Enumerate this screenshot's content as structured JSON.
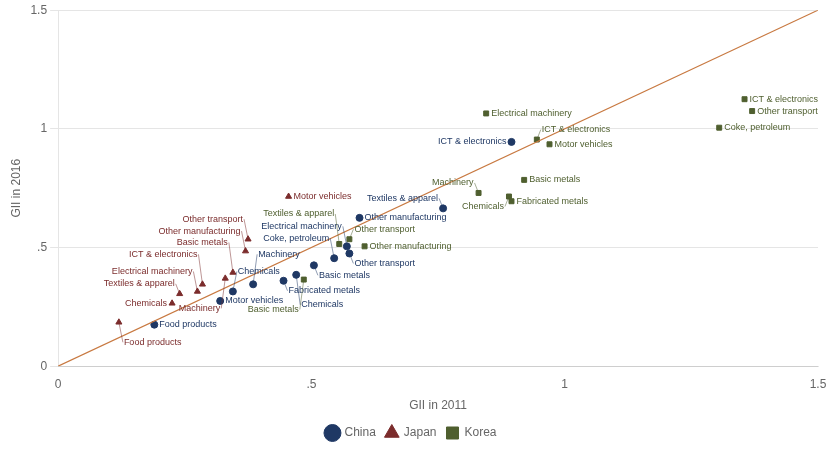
{
  "chart_data": {
    "type": "scatter",
    "xlabel": "GII in 2011",
    "ylabel": "GII in 2016",
    "xlim": [
      0,
      1.5
    ],
    "ylim": [
      0,
      1.5
    ],
    "xticks": [
      0,
      {
        "value": 0.5,
        "label": ".5"
      },
      1,
      1.5
    ],
    "yticks": [
      0,
      {
        "value": 0.5,
        "label": ".5"
      },
      1,
      1.5
    ],
    "grid": "y",
    "legend": "bottom",
    "lines": [
      {
        "x": [
          0,
          1.5
        ],
        "y": [
          0,
          1.5
        ],
        "color": "#c87941"
      }
    ],
    "series": [
      {
        "name": "China",
        "color": "#1f3864",
        "marker": "circle",
        "points": [
          {
            "x": 0.19,
            "y": 0.175,
            "label": "Food products"
          },
          {
            "x": 0.32,
            "y": 0.275,
            "label": "Motor vehicles"
          },
          {
            "x": 0.345,
            "y": 0.315,
            "label": "Chemicals"
          },
          {
            "x": 0.385,
            "y": 0.345,
            "label": "Machinery"
          },
          {
            "x": 0.445,
            "y": 0.36,
            "label": "Fabricated metals"
          },
          {
            "x": 0.47,
            "y": 0.385,
            "label": "Chemicals"
          },
          {
            "x": 0.505,
            "y": 0.425,
            "label": "Basic metals"
          },
          {
            "x": 0.545,
            "y": 0.455,
            "label": "Coke, petroleum"
          },
          {
            "x": 0.575,
            "y": 0.475,
            "label": "Other transport"
          },
          {
            "x": 0.57,
            "y": 0.505,
            "label": "Electrical machinery"
          },
          {
            "x": 0.595,
            "y": 0.625,
            "label": "Other manufacturing"
          },
          {
            "x": 0.76,
            "y": 0.665,
            "label": "Textiles & apparel"
          },
          {
            "x": 0.895,
            "y": 0.945,
            "label": "ICT & electronics"
          }
        ]
      },
      {
        "name": "Japan",
        "color": "#7b2c2c",
        "marker": "triangle",
        "points": [
          {
            "x": 0.12,
            "y": 0.185,
            "label": "Food products"
          },
          {
            "x": 0.225,
            "y": 0.265,
            "label": "Chemicals"
          },
          {
            "x": 0.24,
            "y": 0.305,
            "label": "Textiles & apparel"
          },
          {
            "x": 0.275,
            "y": 0.315,
            "label": "Electrical machinery"
          },
          {
            "x": 0.285,
            "y": 0.345,
            "label": "ICT & electronics"
          },
          {
            "x": 0.33,
            "y": 0.37,
            "label": "Machinery"
          },
          {
            "x": 0.345,
            "y": 0.395,
            "label": "Basic metals"
          },
          {
            "x": 0.37,
            "y": 0.485,
            "label": "Other manufacturing"
          },
          {
            "x": 0.375,
            "y": 0.535,
            "label": "Other transport"
          },
          {
            "x": 0.455,
            "y": 0.715,
            "label": "Motor vehicles"
          }
        ]
      },
      {
        "name": "Korea",
        "color": "#4f5f2f",
        "marker": "square",
        "points": [
          {
            "x": 0.555,
            "y": 0.515,
            "label": "Textiles & apparel"
          },
          {
            "x": 0.605,
            "y": 0.505,
            "label": "Other manufacturing"
          },
          {
            "x": 0.575,
            "y": 0.535,
            "label": "Other transport"
          },
          {
            "x": 0.485,
            "y": 0.365,
            "label": "Basic metals"
          },
          {
            "x": 0.83,
            "y": 0.73,
            "label": "Machinery"
          },
          {
            "x": 0.89,
            "y": 0.715,
            "label": "Chemicals"
          },
          {
            "x": 0.895,
            "y": 0.695,
            "label": "Fabricated metals"
          },
          {
            "x": 0.92,
            "y": 0.785,
            "label": "Basic metals"
          },
          {
            "x": 0.97,
            "y": 0.935,
            "label": "Motor vehicles"
          },
          {
            "x": 0.945,
            "y": 0.955,
            "label": "ICT & electronics"
          },
          {
            "x": 0.845,
            "y": 1.065,
            "label": "Electrical machinery"
          },
          {
            "x": 1.355,
            "y": 1.125,
            "label": "ICT & electronics"
          },
          {
            "x": 1.37,
            "y": 1.075,
            "label": "Other transport"
          },
          {
            "x": 1.305,
            "y": 1.005,
            "label": "Coke, petroleum"
          }
        ]
      }
    ]
  }
}
